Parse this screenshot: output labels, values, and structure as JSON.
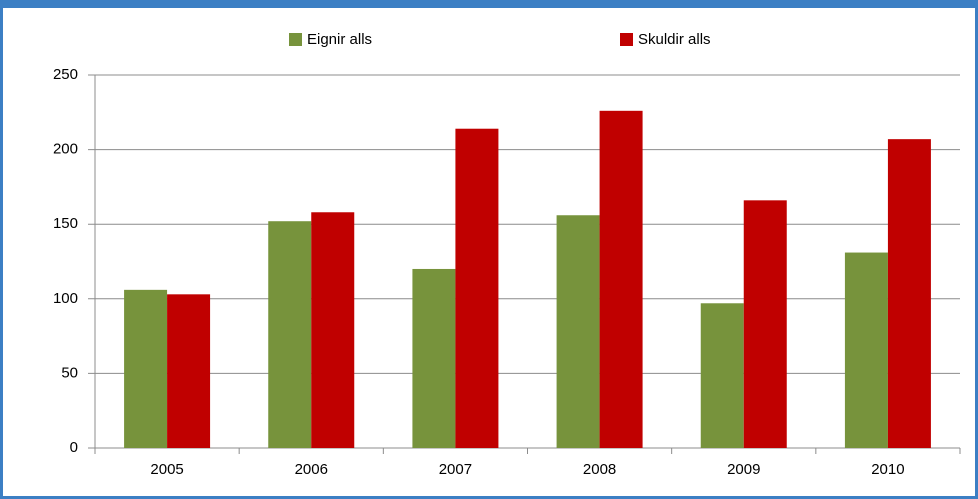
{
  "chart_data": {
    "type": "bar",
    "categories": [
      "2005",
      "2006",
      "2007",
      "2008",
      "2009",
      "2010"
    ],
    "series": [
      {
        "name": "Eignir alls",
        "color": "#77933c",
        "values": [
          106,
          152,
          120,
          156,
          97,
          131
        ]
      },
      {
        "name": "Skuldir alls",
        "color": "#c00000",
        "values": [
          103,
          158,
          214,
          226,
          166,
          207
        ]
      }
    ],
    "ylim": [
      0,
      250
    ],
    "yticks": [
      0,
      50,
      100,
      150,
      200,
      250
    ],
    "grid": true,
    "legend": "top"
  }
}
